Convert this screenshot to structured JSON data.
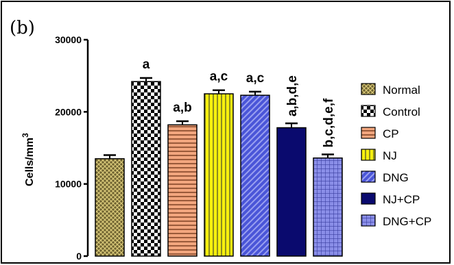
{
  "panel_label": "(b)",
  "chart_data": {
    "type": "bar",
    "title": "",
    "ylabel": "Cells/mm",
    "ylabel_superscript": "3",
    "xlabel": "",
    "ylim": [
      0,
      30000
    ],
    "yticks": [
      0,
      10000,
      20000,
      30000
    ],
    "ytick_labels": [
      "0",
      "10000",
      "20000",
      "30000"
    ],
    "categories": [
      "Normal",
      "Control",
      "CP",
      "NJ",
      "DNG",
      "NJ+CP",
      "DNG+CP"
    ],
    "values": [
      13500,
      24200,
      18200,
      22500,
      22300,
      17800,
      13600
    ],
    "errors": [
      500,
      500,
      500,
      500,
      500,
      600,
      500
    ],
    "significance": [
      "",
      "a",
      "a,b",
      "a,c",
      "a,c",
      "a,b,d,e",
      "b,c,d,e,f"
    ],
    "legend": {
      "placement": "right",
      "entries": [
        "Normal",
        "Control",
        "CP",
        "NJ",
        "DNG",
        "NJ+CP",
        "DNG+CP"
      ]
    },
    "colors": {
      "normal": "#6e6230",
      "control_dark": "#000000",
      "cp": "#f2a67e",
      "nj": "#f6f00e",
      "dng": "#4a55d8",
      "njcp": "#0a0a6e",
      "dngcp": "#8a8ee8"
    },
    "patterns": [
      "crosshatch-dots",
      "checkerboard",
      "horizontal-stripes",
      "vertical-stripes",
      "diagonal-stripes",
      "solid",
      "grid"
    ],
    "grid": false
  }
}
